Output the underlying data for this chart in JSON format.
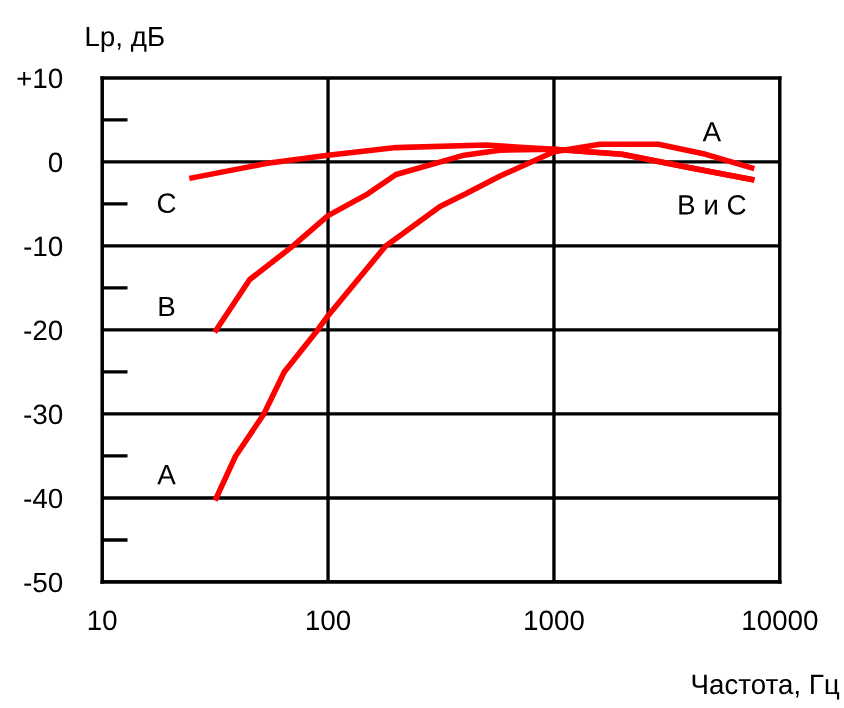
{
  "chart_data": {
    "type": "line",
    "ylabel": "Lp, дБ",
    "xlabel": "Частота, Гц",
    "log": "x",
    "xlim": [
      10,
      10000
    ],
    "xticks": [
      10,
      100,
      1000,
      10000
    ],
    "ylim": [
      -50,
      10
    ],
    "yticks": [
      {
        "value": 10,
        "label": "+10"
      },
      {
        "value": 5,
        "label": null
      },
      0,
      {
        "value": -5,
        "label": null
      },
      -10,
      {
        "value": -15,
        "label": null
      },
      -20,
      {
        "value": -25,
        "label": null
      },
      -30,
      {
        "value": -35,
        "label": null
      },
      -40,
      {
        "value": -45,
        "label": null
      },
      -50
    ],
    "grid": true,
    "legend": false,
    "marker": "none",
    "line_style": "solid",
    "series": [
      {
        "name": "A",
        "color": "#ff0000",
        "x": [
          32,
          39,
          52,
          64,
          90,
          100,
          180,
          208,
          313,
          407,
          575,
          1000,
          1600,
          2900,
          4700,
          7500
        ],
        "values": [
          -40,
          -35,
          -30,
          -25,
          -20,
          -18.3,
          -10,
          -8.8,
          -5.3,
          -3.8,
          -1.7,
          1.2,
          2.1,
          2.1,
          0.9,
          -0.7
        ]
      },
      {
        "name": "B",
        "color": "#ff0000",
        "x": [
          32,
          45,
          70,
          100,
          150,
          200,
          315,
          400,
          575,
          1000,
          2000,
          4000,
          7500
        ],
        "values": [
          -20,
          -14,
          -10,
          -6.4,
          -3.8,
          -1.5,
          0,
          0.8,
          1.4,
          1.5,
          0.9,
          -0.7,
          -2.1
        ]
      },
      {
        "name": "C",
        "color": "#ff0000",
        "x": [
          25,
          53,
          100,
          200,
          500,
          1000,
          2000,
          4000,
          7500
        ],
        "values": [
          -1.9,
          -0.2,
          0.8,
          1.7,
          2.0,
          1.5,
          0.9,
          -0.7,
          -2.1
        ]
      }
    ],
    "annotations": [
      "A",
      "В и С"
    ]
  }
}
